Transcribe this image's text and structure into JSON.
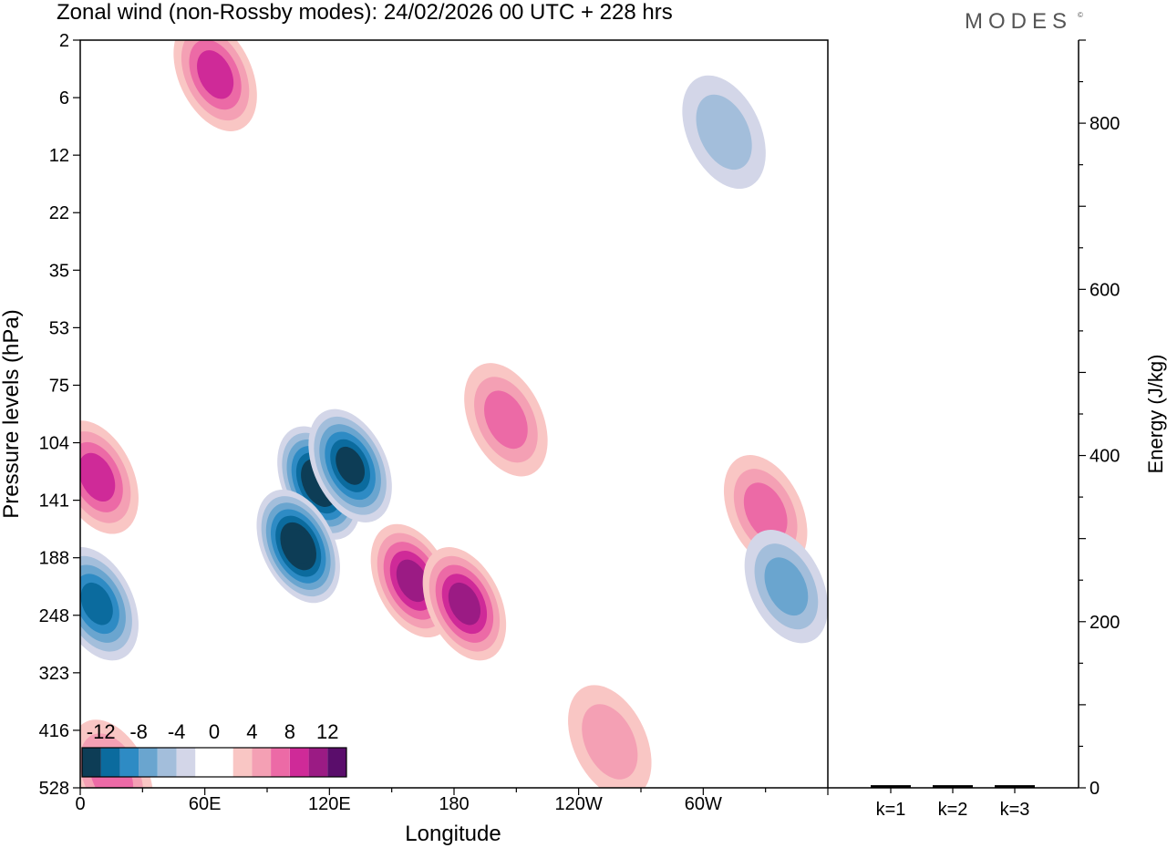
{
  "title": "Zonal wind (non-Rossby modes):  24/02/2026  00 UTC  + 228 hrs",
  "brand": "MODES",
  "brand_mark": "©",
  "colors": {
    "neg": [
      "#0d3d56",
      "#0b6b9e",
      "#2e8bc4",
      "#6aa5cf",
      "#a3bedb",
      "#d3d6e8"
    ],
    "neutral": "#ffffff",
    "pos": [
      "#f9c6c4",
      "#f4a0b4",
      "#ec6aa6",
      "#cf2a98",
      "#9b1b84",
      "#5a0d6b"
    ],
    "axis": "#000000"
  },
  "chart_data": [
    {
      "type": "heatmap",
      "title": "Zonal wind (non-Rossby modes):  24/02/2026  00 UTC  + 228 hrs",
      "xlabel": "Longitude",
      "ylabel": "Pressure levels (hPa)",
      "x_ticks": [
        "0",
        "60E",
        "120E",
        "180",
        "120W",
        "60W"
      ],
      "x_tick_lon": [
        0,
        60,
        120,
        180,
        240,
        300
      ],
      "x_range": [
        0,
        360
      ],
      "y_ticks": [
        "2",
        "6",
        "12",
        "22",
        "35",
        "53",
        "75",
        "104",
        "141",
        "188",
        "248",
        "323",
        "416",
        "528"
      ],
      "colorbar_labels": [
        "-12",
        "-8",
        "-4",
        "0",
        "4",
        "8",
        "12"
      ],
      "levels": [
        -14,
        -12,
        -10,
        -8,
        -6,
        -4,
        -2,
        2,
        4,
        6,
        8,
        10,
        12,
        14
      ],
      "features": [
        {
          "lon": 115,
          "lev": 7.7,
          "value": -14
        },
        {
          "lon": 105,
          "lev": 8.8,
          "value": -13
        },
        {
          "lon": 8,
          "lev": 9.8,
          "value": -10
        },
        {
          "lon": 130,
          "lev": 7.4,
          "value": -11
        },
        {
          "lon": 160,
          "lev": 9.4,
          "value": 9
        },
        {
          "lon": 185,
          "lev": 9.8,
          "value": 9
        },
        {
          "lon": 65,
          "lev": 0.6,
          "value": 7
        },
        {
          "lon": 8,
          "lev": 7.6,
          "value": 7
        },
        {
          "lon": 205,
          "lev": 6.6,
          "value": 6
        },
        {
          "lon": 15,
          "lev": 12.8,
          "value": 6
        },
        {
          "lon": 255,
          "lev": 12.2,
          "value": 4
        },
        {
          "lon": 330,
          "lev": 8.2,
          "value": 6
        },
        {
          "lon": 310,
          "lev": 1.6,
          "value": -4
        },
        {
          "lon": 340,
          "lev": 9.5,
          "value": -5
        }
      ]
    },
    {
      "type": "bar",
      "ylabel": "Energy (J/kg)",
      "categories": [
        "k=1",
        "k=2",
        "k=3"
      ],
      "values": [
        1,
        1,
        1
      ],
      "ylim": [
        0,
        900
      ],
      "y_ticks": [
        "0",
        "200",
        "400",
        "600",
        "800"
      ],
      "y_tick_values": [
        0,
        200,
        400,
        600,
        800
      ]
    }
  ]
}
